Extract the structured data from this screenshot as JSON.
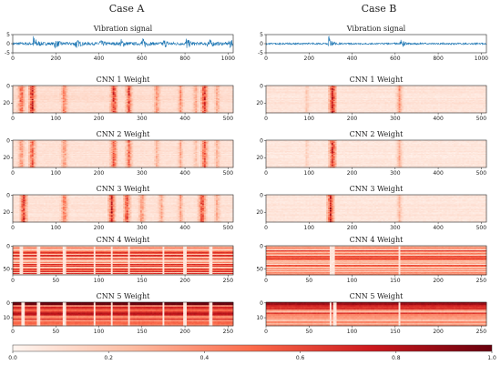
{
  "cases": [
    "Case A",
    "Case B"
  ],
  "colorbar": {
    "ticks": [
      0.0,
      0.2,
      0.4,
      0.6,
      0.8,
      1.0
    ],
    "range": [
      0,
      1
    ],
    "colormap": "Reds"
  },
  "chart_data": [
    {
      "case": "Case A",
      "panels": [
        {
          "type": "line",
          "title": "Vibration signal",
          "xlim": [
            0,
            1024
          ],
          "ylim": [
            -5,
            5
          ],
          "xticks": [
            0,
            200,
            400,
            600,
            800,
            1000
          ],
          "yticks": [
            5,
            0,
            -5
          ],
          "bursts": [
            {
              "x": 95,
              "amp": 4.6
            },
            {
              "x": 195,
              "amp": 2.6
            },
            {
              "x": 290,
              "amp": 3.0
            },
            {
              "x": 400,
              "amp": 2.4
            },
            {
              "x": 500,
              "amp": 2.6
            },
            {
              "x": 600,
              "amp": 3.2
            },
            {
              "x": 700,
              "amp": 2.4
            },
            {
              "x": 805,
              "amp": 3.0
            },
            {
              "x": 905,
              "amp": 3.6
            },
            {
              "x": 1005,
              "amp": 2.8
            }
          ],
          "noise_amp": 0.8,
          "color": "#1f77b4"
        },
        {
          "type": "heatmap",
          "title": "CNN 1 Weight",
          "xlim": [
            0,
            512
          ],
          "rows": 32,
          "xticks": [
            0,
            100,
            200,
            300,
            400,
            500
          ],
          "yticks": [
            0,
            20
          ],
          "hotspots": [
            {
              "x": 20,
              "v": 0.7
            },
            {
              "x": 45,
              "v": 0.9
            },
            {
              "x": 120,
              "v": 0.6
            },
            {
              "x": 235,
              "v": 0.85
            },
            {
              "x": 270,
              "v": 0.7
            },
            {
              "x": 335,
              "v": 0.5
            },
            {
              "x": 390,
              "v": 0.45
            },
            {
              "x": 425,
              "v": 0.4
            },
            {
              "x": 445,
              "v": 0.85
            },
            {
              "x": 475,
              "v": 0.4
            }
          ],
          "base": 0.08
        },
        {
          "type": "heatmap",
          "title": "CNN 2 Weight",
          "xlim": [
            0,
            512
          ],
          "rows": 32,
          "xticks": [
            0,
            100,
            200,
            300,
            400,
            500
          ],
          "yticks": [
            0,
            20
          ],
          "hotspots": [
            {
              "x": 20,
              "v": 0.5
            },
            {
              "x": 45,
              "v": 0.7
            },
            {
              "x": 120,
              "v": 0.5
            },
            {
              "x": 235,
              "v": 0.7
            },
            {
              "x": 270,
              "v": 0.6
            },
            {
              "x": 335,
              "v": 0.35
            },
            {
              "x": 390,
              "v": 0.35
            },
            {
              "x": 425,
              "v": 0.3
            },
            {
              "x": 445,
              "v": 0.7
            },
            {
              "x": 475,
              "v": 0.35
            }
          ],
          "base": 0.06
        },
        {
          "type": "heatmap",
          "title": "CNN 3 Weight",
          "xlim": [
            0,
            512
          ],
          "rows": 32,
          "xticks": [
            0,
            100,
            200,
            300,
            400,
            500
          ],
          "yticks": [
            0,
            20
          ],
          "hotspots": [
            {
              "x": 25,
              "v": 0.85
            },
            {
              "x": 120,
              "v": 0.6
            },
            {
              "x": 230,
              "v": 0.8
            },
            {
              "x": 265,
              "v": 0.75
            },
            {
              "x": 300,
              "v": 0.5
            },
            {
              "x": 345,
              "v": 0.4
            },
            {
              "x": 390,
              "v": 0.4
            },
            {
              "x": 440,
              "v": 0.8
            },
            {
              "x": 475,
              "v": 0.4
            }
          ],
          "base": 0.06
        },
        {
          "type": "heatmap",
          "title": "CNN 4 Weight",
          "xlim": [
            0,
            256
          ],
          "rows": 64,
          "xticks": [
            0,
            50,
            100,
            150,
            200,
            250
          ],
          "yticks": [
            0,
            50
          ],
          "vcuts": [
            10,
            30,
            60,
            95,
            115,
            135,
            175,
            200,
            230
          ],
          "base": 0.35,
          "striped": true
        },
        {
          "type": "heatmap",
          "title": "CNN 5 Weight",
          "xlim": [
            0,
            256
          ],
          "rows": 16,
          "xticks": [
            0,
            50,
            100,
            150,
            200,
            250
          ],
          "yticks": [
            0,
            10
          ],
          "vcuts": [
            12,
            30,
            60,
            95,
            115,
            135,
            175,
            200,
            230
          ],
          "base": 0.5,
          "striped": true,
          "dark_top": true
        }
      ]
    },
    {
      "case": "Case B",
      "panels": [
        {
          "type": "line",
          "title": "Vibration signal",
          "xlim": [
            0,
            1024
          ],
          "ylim": [
            -5,
            5
          ],
          "xticks": [
            0,
            200,
            400,
            600,
            800,
            1000
          ],
          "yticks": [
            5,
            0,
            -5
          ],
          "bursts": [
            {
              "x": 290,
              "amp": 4.4
            },
            {
              "x": 625,
              "amp": 2.8
            }
          ],
          "noise_amp": 0.45,
          "color": "#1f77b4"
        },
        {
          "type": "heatmap",
          "title": "CNN 1 Weight",
          "xlim": [
            0,
            512
          ],
          "rows": 32,
          "xticks": [
            0,
            100,
            200,
            300,
            400,
            500
          ],
          "yticks": [
            0,
            20
          ],
          "hotspots": [
            {
              "x": 95,
              "v": 0.25
            },
            {
              "x": 155,
              "v": 0.95
            },
            {
              "x": 310,
              "v": 0.45
            }
          ],
          "base": 0.05
        },
        {
          "type": "heatmap",
          "title": "CNN 2 Weight",
          "xlim": [
            0,
            512
          ],
          "rows": 32,
          "xticks": [
            0,
            100,
            200,
            300,
            400,
            500
          ],
          "yticks": [
            0,
            20
          ],
          "hotspots": [
            {
              "x": 95,
              "v": 0.2
            },
            {
              "x": 155,
              "v": 0.85
            },
            {
              "x": 310,
              "v": 0.35
            }
          ],
          "base": 0.04
        },
        {
          "type": "heatmap",
          "title": "CNN 3 Weight",
          "xlim": [
            0,
            512
          ],
          "rows": 32,
          "xticks": [
            0,
            100,
            200,
            300,
            400,
            500
          ],
          "yticks": [
            0,
            20
          ],
          "hotspots": [
            {
              "x": 150,
              "v": 0.85
            },
            {
              "x": 310,
              "v": 0.3
            }
          ],
          "base": 0.04
        },
        {
          "type": "heatmap",
          "title": "CNN 4 Weight",
          "xlim": [
            0,
            256
          ],
          "rows": 64,
          "xticks": [
            0,
            50,
            100,
            150,
            200,
            250
          ],
          "yticks": [
            0,
            50
          ],
          "vcuts": [
            75,
            78,
            155
          ],
          "base": 0.3,
          "striped": true
        },
        {
          "type": "heatmap",
          "title": "CNN 5 Weight",
          "xlim": [
            0,
            256
          ],
          "rows": 16,
          "xticks": [
            0,
            50,
            100,
            150,
            200,
            250
          ],
          "yticks": [
            0,
            10
          ],
          "vcuts": [
            75,
            80,
            155
          ],
          "base": 0.35,
          "striped": true,
          "dark_top": true
        }
      ]
    }
  ]
}
